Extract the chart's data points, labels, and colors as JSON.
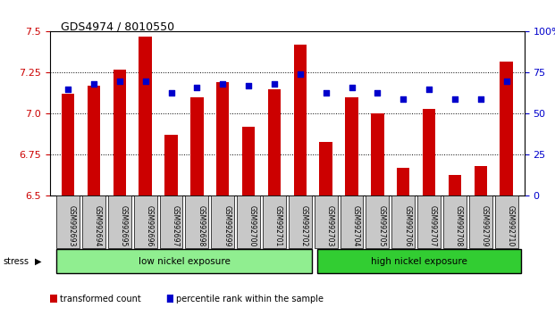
{
  "title": "GDS4974 / 8010550",
  "categories": [
    "GSM992693",
    "GSM992694",
    "GSM992695",
    "GSM992696",
    "GSM992697",
    "GSM992698",
    "GSM992699",
    "GSM992700",
    "GSM992701",
    "GSM992702",
    "GSM992703",
    "GSM992704",
    "GSM992705",
    "GSM992706",
    "GSM992707",
    "GSM992708",
    "GSM992709",
    "GSM992710"
  ],
  "bar_values": [
    7.12,
    7.17,
    7.27,
    7.47,
    6.87,
    7.1,
    7.19,
    6.92,
    7.15,
    7.42,
    6.83,
    7.1,
    7.0,
    6.67,
    7.03,
    6.63,
    6.68,
    7.32
  ],
  "percentile_values": [
    65,
    68,
    70,
    70,
    63,
    66,
    68,
    67,
    68,
    74,
    63,
    66,
    63,
    59,
    65,
    59,
    59,
    70
  ],
  "bar_color": "#cc0000",
  "dot_color": "#0000cc",
  "ylim_left": [
    6.5,
    7.5
  ],
  "ylim_right": [
    0,
    100
  ],
  "yticks_left": [
    6.5,
    6.75,
    7.0,
    7.25,
    7.5
  ],
  "yticks_right": [
    0,
    25,
    50,
    75,
    100
  ],
  "group1_label": "low nickel exposure",
  "group2_label": "high nickel exposure",
  "group1_count": 10,
  "group2_count": 8,
  "stress_label": "stress",
  "legend1": "transformed count",
  "legend2": "percentile rank within the sample",
  "background_color": "#ffffff",
  "tick_bg_color": "#c8c8c8",
  "group1_color": "#90ee90",
  "group2_color": "#32cd32"
}
